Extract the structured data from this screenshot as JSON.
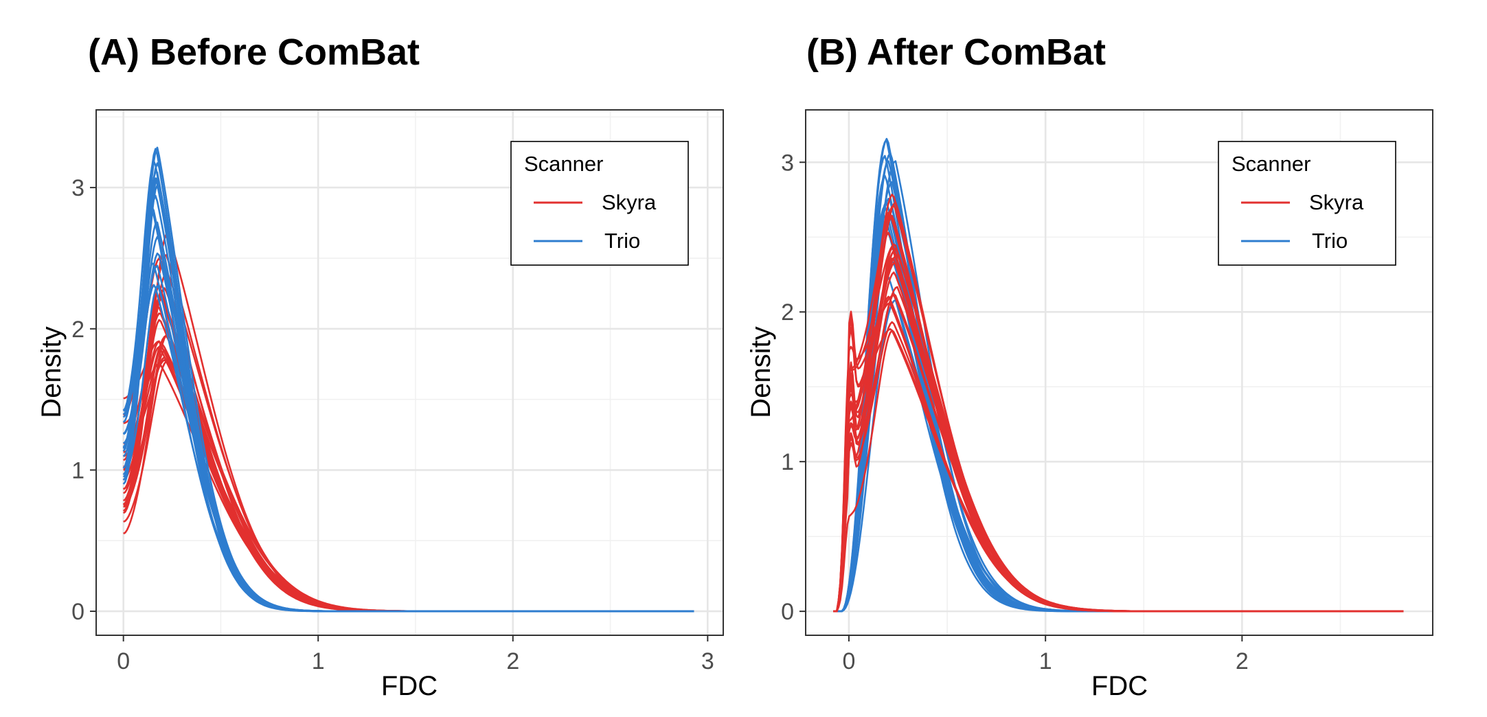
{
  "colors": {
    "Skyra": "#e2302f",
    "Trio": "#2e7dcf"
  },
  "chart_data": [
    {
      "type": "line",
      "panel": "A",
      "title": "(A) Before ComBat",
      "xlabel": "FDC",
      "ylabel": "Density",
      "xlim": [
        -0.14,
        3.08
      ],
      "ylim": [
        -0.17,
        3.55
      ],
      "xticks": [
        0,
        1,
        2,
        3
      ],
      "xtick_labels": [
        "0",
        "1",
        "2",
        "3"
      ],
      "yticks": [
        0,
        1,
        2,
        3
      ],
      "ytick_labels": [
        "0",
        "1",
        "2",
        "3"
      ],
      "legend": {
        "title": "Scanner",
        "entries": [
          "Skyra",
          "Trio"
        ],
        "position": "top-right"
      },
      "grid": true,
      "x_range": [
        0,
        2.93
      ],
      "series": [
        {
          "scanner": "Skyra",
          "count": 22,
          "start_density": [
            0.5,
            1.65
          ],
          "peak_x": [
            0.18,
            0.23
          ],
          "peak_density": [
            1.75,
            2.7
          ],
          "tail_scale": [
            0.33,
            0.4
          ]
        },
        {
          "scanner": "Trio",
          "count": 18,
          "start_density": [
            0.9,
            1.45
          ],
          "peak_x": [
            0.15,
            0.18
          ],
          "peak_density": [
            2.2,
            3.38
          ],
          "tail_scale": [
            0.23,
            0.28
          ]
        }
      ]
    },
    {
      "type": "line",
      "panel": "B",
      "title": "(B) After ComBat",
      "xlabel": "FDC",
      "ylabel": "Density",
      "xlim": [
        -0.22,
        2.97
      ],
      "ylim": [
        -0.16,
        3.35
      ],
      "xticks": [
        0,
        1,
        2
      ],
      "xtick_labels": [
        "0",
        "1",
        "2"
      ],
      "yticks": [
        0,
        1,
        2,
        3
      ],
      "ytick_labels": [
        "0",
        "1",
        "2",
        "3"
      ],
      "legend": {
        "title": "Scanner",
        "entries": [
          "Skyra",
          "Trio"
        ],
        "position": "top-right"
      },
      "grid": true,
      "x_range": [
        -0.08,
        2.82
      ],
      "series": [
        {
          "scanner": "Skyra",
          "count": 22,
          "start_density": [
            0.6,
            1.65
          ],
          "peak_x": [
            0.2,
            0.25
          ],
          "peak_density": [
            1.8,
            2.8
          ],
          "tail_scale": [
            0.33,
            0.4
          ]
        },
        {
          "scanner": "Trio",
          "count": 18,
          "start_density": [
            0,
            0
          ],
          "peak_x": [
            0.18,
            0.24
          ],
          "peak_density": [
            2.0,
            3.2
          ],
          "tail_scale": [
            0.26,
            0.32
          ]
        }
      ]
    }
  ]
}
